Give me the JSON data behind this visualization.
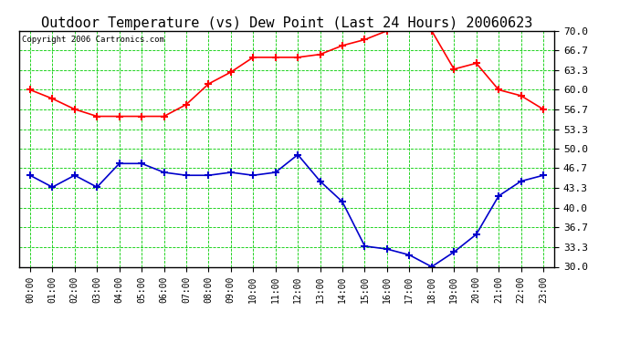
{
  "title": "Outdoor Temperature (vs) Dew Point (Last 24 Hours) 20060623",
  "copyright": "Copyright 2006 Cartronics.com",
  "hours": [
    "00:00",
    "01:00",
    "02:00",
    "03:00",
    "04:00",
    "05:00",
    "06:00",
    "07:00",
    "08:00",
    "09:00",
    "10:00",
    "11:00",
    "12:00",
    "13:00",
    "14:00",
    "15:00",
    "16:00",
    "17:00",
    "18:00",
    "19:00",
    "20:00",
    "21:00",
    "22:00",
    "23:00"
  ],
  "temp": [
    60.0,
    58.5,
    56.7,
    55.5,
    55.5,
    55.5,
    55.5,
    57.5,
    61.0,
    63.0,
    65.5,
    65.5,
    65.5,
    66.0,
    67.5,
    68.5,
    70.0,
    70.5,
    70.0,
    63.5,
    64.5,
    60.0,
    59.0,
    56.7
  ],
  "dew": [
    45.5,
    43.5,
    45.5,
    43.5,
    47.5,
    47.5,
    46.0,
    45.5,
    45.5,
    46.0,
    45.5,
    46.0,
    49.0,
    44.5,
    41.0,
    33.5,
    33.0,
    32.0,
    30.0,
    32.5,
    35.5,
    42.0,
    44.5,
    45.5
  ],
  "ylim_min": 30.0,
  "ylim_max": 70.0,
  "yticks": [
    30.0,
    33.3,
    36.7,
    40.0,
    43.3,
    46.7,
    50.0,
    53.3,
    56.7,
    60.0,
    63.3,
    66.7,
    70.0
  ],
  "temp_color": "#ff0000",
  "dew_color": "#0000cc",
  "bg_color": "#ffffff",
  "grid_color": "#00cc00",
  "title_fontsize": 11,
  "marker": "+",
  "marker_size": 6
}
